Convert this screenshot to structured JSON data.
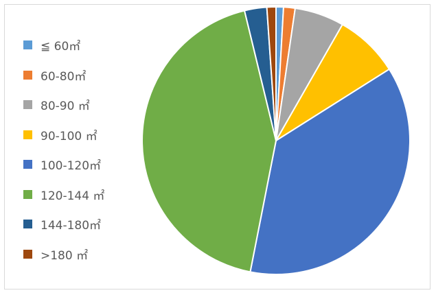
{
  "chart_data": {
    "type": "pie",
    "title": "",
    "legend_position": "left",
    "slices": [
      {
        "label": "≦ 60㎡",
        "value": 0.9,
        "color": "#5B9BD5"
      },
      {
        "label": "60-80㎡",
        "value": 1.4,
        "color": "#ED7D31"
      },
      {
        "label": "80-90 ㎡",
        "value": 6.0,
        "color": "#A5A5A5"
      },
      {
        "label": "90-100 ㎡",
        "value": 7.8,
        "color": "#FFC000"
      },
      {
        "label": "100-120㎡",
        "value": 37.2,
        "color": "#4472C4"
      },
      {
        "label": "120-144 ㎡",
        "value": 43.3,
        "color": "#70AD47"
      },
      {
        "label": "144-180㎡",
        "value": 2.7,
        "color": "#255E91"
      },
      {
        "label": ">180 ㎡",
        "value": 1.1,
        "color": "#9E480E"
      }
    ]
  }
}
